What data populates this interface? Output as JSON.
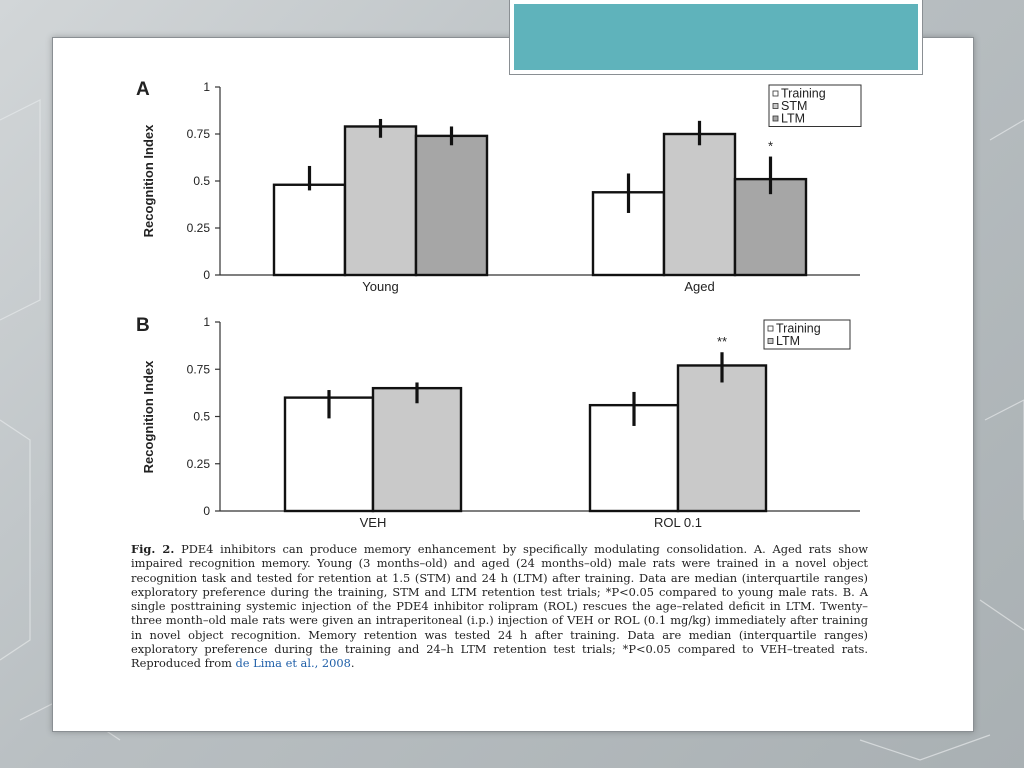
{
  "slide": {
    "colors": {
      "accent": "#5fb3bb",
      "panel": "#ffffff"
    }
  },
  "chart_data": [
    {
      "type": "bar",
      "panel_label": "A",
      "categories": [
        "Young",
        "Aged"
      ],
      "ylabel": "Recognition Index",
      "ylim": [
        0,
        1
      ],
      "yticks": [
        "0",
        "0.25",
        "0.5",
        "0.75",
        "1"
      ],
      "series": [
        {
          "name": "Training",
          "values": [
            0.48,
            0.44
          ],
          "err_low": [
            0.45,
            0.33
          ],
          "err_high": [
            0.58,
            0.54
          ],
          "color": "#ffffff"
        },
        {
          "name": "STM",
          "values": [
            0.79,
            0.75
          ],
          "err_low": [
            0.73,
            0.69
          ],
          "err_high": [
            0.83,
            0.82
          ],
          "color": "#c9c9c9"
        },
        {
          "name": "LTM",
          "values": [
            0.74,
            0.51
          ],
          "err_low": [
            0.69,
            0.43
          ],
          "err_high": [
            0.79,
            0.63
          ],
          "color": "#a6a6a6"
        }
      ],
      "annotations": [
        {
          "category": "Aged",
          "series": "LTM",
          "text": "*"
        }
      ],
      "legend_position": "top-right"
    },
    {
      "type": "bar",
      "panel_label": "B",
      "categories": [
        "VEH",
        "ROL 0.1"
      ],
      "ylabel": "Recognition Index",
      "ylim": [
        0,
        1
      ],
      "yticks": [
        "0",
        "0.25",
        "0.5",
        "0.75",
        "1"
      ],
      "series": [
        {
          "name": "Training",
          "values": [
            0.6,
            0.56
          ],
          "err_low": [
            0.49,
            0.45
          ],
          "err_high": [
            0.64,
            0.63
          ],
          "color": "#ffffff"
        },
        {
          "name": "LTM",
          "values": [
            0.65,
            0.77
          ],
          "err_low": [
            0.57,
            0.68
          ],
          "err_high": [
            0.68,
            0.84
          ],
          "color": "#c9c9c9"
        }
      ],
      "annotations": [
        {
          "category": "ROL 0.1",
          "series": "LTM",
          "text": "**"
        }
      ],
      "legend_position": "top-right"
    }
  ],
  "caption": {
    "fig_label": "Fig. 2.",
    "text_1": " PDE4 inhibitors can produce memory enhancement by specifically modulating consolidation. A. Aged rats show impaired recognition memory. Young (3 months–old) and aged (24 months–old) male rats were trained in a novel object recognition task and tested for retention at 1.5 (STM) and 24 h (LTM) after training. Data are median (interquartile ranges) exploratory preference during the training, STM and LTM retention test trials; *P<0.05 compared to young male rats. B. A single posttraining systemic injection of the PDE4 inhibitor rolipram (ROL) rescues the age–related deficit in LTM. Twenty–three month–old male rats were given an intraperitoneal (i.p.) injection of VEH or ROL (0.1 mg/kg) immediately after training in novel object recognition. Memory retention was tested 24 h after training. Data are median (interquartile ranges) exploratory preference during the training and 24–h LTM retention test trials; *P<0.05 compared to VEH–treated rats. Reproduced from ",
    "reference": "de Lima et al., 2008",
    "text_2": "."
  }
}
